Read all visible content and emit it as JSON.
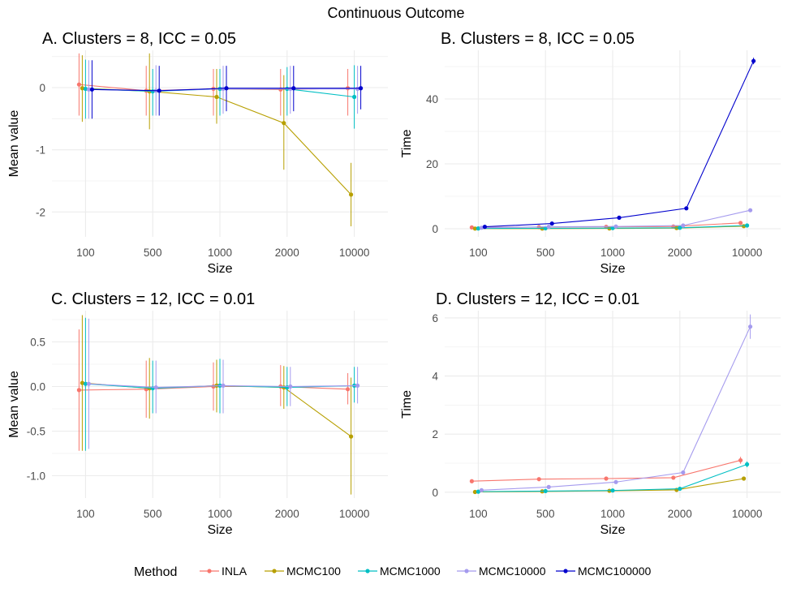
{
  "suptitle": "Continuous Outcome",
  "legend": {
    "title": "Method",
    "placement": "bottom",
    "items": [
      {
        "name": "INLA",
        "color": "#F8766D"
      },
      {
        "name": "MCMC100",
        "color": "#B79F00"
      },
      {
        "name": "MCMC1000",
        "color": "#00BFC4"
      },
      {
        "name": "MCMC10000",
        "color": "#A59BEE"
      },
      {
        "name": "MCMC100000",
        "color": "#0000CD"
      }
    ]
  },
  "chart_data": [
    {
      "panel": "A",
      "type": "line",
      "title": "A. Clusters = 8, ICC = 0.05",
      "xlabel": "Size",
      "ylabel": "Mean value",
      "categories": [
        "100",
        "500",
        "1000",
        "2000",
        "10000"
      ],
      "yticks": [
        0,
        -1,
        -2
      ],
      "ylim": [
        -2.4,
        0.6
      ],
      "grid": true,
      "series": [
        {
          "name": "INLA",
          "values": [
            0.05,
            -0.05,
            -0.02,
            -0.03,
            -0.01
          ],
          "lower": [
            -0.45,
            -0.45,
            -0.45,
            -0.45,
            -0.45
          ],
          "upper": [
            0.55,
            0.35,
            0.3,
            0.3,
            0.3
          ]
        },
        {
          "name": "MCMC100",
          "values": [
            -0.01,
            -0.06,
            -0.15,
            -0.57,
            -1.72
          ],
          "lower": [
            -0.55,
            -0.67,
            -0.58,
            -1.32,
            -2.23
          ],
          "upper": [
            0.52,
            0.55,
            0.3,
            0.2,
            -1.21
          ]
        },
        {
          "name": "MCMC1000",
          "values": [
            -0.02,
            -0.06,
            -0.02,
            -0.02,
            -0.15
          ],
          "lower": [
            -0.5,
            -0.45,
            -0.45,
            -0.45,
            -0.66
          ],
          "upper": [
            0.45,
            0.3,
            0.3,
            0.33,
            0.36
          ]
        },
        {
          "name": "MCMC10000",
          "values": [
            -0.03,
            -0.05,
            -0.02,
            -0.02,
            -0.02
          ],
          "lower": [
            -0.5,
            -0.45,
            -0.42,
            -0.42,
            -0.42
          ],
          "upper": [
            0.44,
            0.36,
            0.35,
            0.35,
            0.35
          ]
        },
        {
          "name": "MCMC100000",
          "values": [
            -0.03,
            -0.05,
            -0.01,
            -0.01,
            -0.01
          ],
          "lower": [
            -0.5,
            -0.45,
            -0.38,
            -0.38,
            -0.35
          ],
          "upper": [
            0.44,
            0.35,
            0.35,
            0.35,
            0.35
          ]
        }
      ]
    },
    {
      "panel": "B",
      "type": "line",
      "title": "B. Clusters = 8, ICC = 0.05",
      "xlabel": "Size",
      "ylabel": "Time",
      "categories": [
        "100",
        "500",
        "1000",
        "2000",
        "10000"
      ],
      "yticks": [
        0,
        20,
        40
      ],
      "ylim": [
        -2.5,
        55
      ],
      "grid": true,
      "series": [
        {
          "name": "INLA",
          "values": [
            0.4,
            0.5,
            0.6,
            0.7,
            1.8
          ]
        },
        {
          "name": "MCMC100",
          "values": [
            0.05,
            0.05,
            0.1,
            0.2,
            0.8
          ]
        },
        {
          "name": "MCMC1000",
          "values": [
            0.1,
            0.15,
            0.2,
            0.3,
            1.0
          ]
        },
        {
          "name": "MCMC10000",
          "values": [
            0.3,
            0.6,
            0.7,
            1.0,
            5.7
          ]
        },
        {
          "name": "MCMC100000",
          "values": [
            0.6,
            1.6,
            3.4,
            6.3,
            51.7
          ],
          "lower": [
            0.5,
            1.5,
            3.3,
            6.2,
            50.7
          ],
          "upper": [
            0.7,
            1.7,
            3.5,
            6.4,
            52.7
          ]
        }
      ]
    },
    {
      "panel": "C",
      "type": "line",
      "title": "C. Clusters = 12, ICC = 0.01",
      "xlabel": "Size",
      "ylabel": "Mean value",
      "categories": [
        "100",
        "500",
        "1000",
        "2000",
        "10000"
      ],
      "yticks": [
        0.5,
        0.0,
        -0.5,
        -1.0
      ],
      "ytick_labels": [
        "0.5",
        "0.0",
        "-0.5",
        "-1.0"
      ],
      "ylim": [
        -1.25,
        0.85
      ],
      "grid": true,
      "series": [
        {
          "name": "INLA",
          "values": [
            -0.04,
            -0.03,
            0.0,
            0.0,
            -0.03
          ],
          "lower": [
            -0.72,
            -0.35,
            -0.27,
            -0.22,
            -0.2
          ],
          "upper": [
            0.64,
            0.29,
            0.27,
            0.24,
            0.15
          ]
        },
        {
          "name": "MCMC100",
          "values": [
            0.04,
            -0.02,
            0.01,
            -0.01,
            -0.56
          ],
          "lower": [
            -0.72,
            -0.36,
            -0.29,
            -0.25,
            -1.21
          ],
          "upper": [
            0.8,
            0.32,
            0.3,
            0.23,
            0.1
          ]
        },
        {
          "name": "MCMC1000",
          "values": [
            0.03,
            -0.02,
            0.01,
            -0.01,
            0.01
          ],
          "lower": [
            -0.72,
            -0.3,
            -0.3,
            -0.22,
            -0.18
          ],
          "upper": [
            0.77,
            0.29,
            0.31,
            0.22,
            0.22
          ]
        },
        {
          "name": "MCMC10000",
          "values": [
            0.03,
            -0.01,
            0.01,
            0.0,
            0.01
          ],
          "lower": [
            -0.7,
            -0.3,
            -0.3,
            -0.22,
            -0.19
          ],
          "upper": [
            0.76,
            0.29,
            0.3,
            0.22,
            0.22
          ]
        }
      ]
    },
    {
      "panel": "D",
      "type": "line",
      "title": "D. Clusters = 12, ICC = 0.01",
      "xlabel": "Size",
      "ylabel": "Time",
      "categories": [
        "100",
        "500",
        "1000",
        "2000",
        "10000"
      ],
      "yticks": [
        0,
        2,
        4,
        6
      ],
      "ylim": [
        -0.2,
        6.25
      ],
      "grid": true,
      "series": [
        {
          "name": "INLA",
          "values": [
            0.38,
            0.45,
            0.47,
            0.5,
            1.1
          ],
          "lower": [
            0.38,
            0.45,
            0.47,
            0.5,
            0.98
          ],
          "upper": [
            0.38,
            0.45,
            0.47,
            0.5,
            1.22
          ]
        },
        {
          "name": "MCMC100",
          "values": [
            0.01,
            0.03,
            0.05,
            0.08,
            0.47
          ],
          "lower": [
            0.01,
            0.03,
            0.05,
            0.08,
            0.42
          ],
          "upper": [
            0.01,
            0.03,
            0.05,
            0.08,
            0.52
          ]
        },
        {
          "name": "MCMC1000",
          "values": [
            0.02,
            0.04,
            0.06,
            0.12,
            0.96
          ],
          "lower": [
            0.02,
            0.04,
            0.06,
            0.12,
            0.86
          ],
          "upper": [
            0.02,
            0.04,
            0.06,
            0.12,
            1.06
          ]
        },
        {
          "name": "MCMC10000",
          "values": [
            0.07,
            0.18,
            0.35,
            0.68,
            5.7
          ],
          "lower": [
            0.07,
            0.18,
            0.35,
            0.68,
            5.28
          ],
          "upper": [
            0.07,
            0.18,
            0.35,
            0.68,
            6.12
          ]
        }
      ]
    }
  ]
}
